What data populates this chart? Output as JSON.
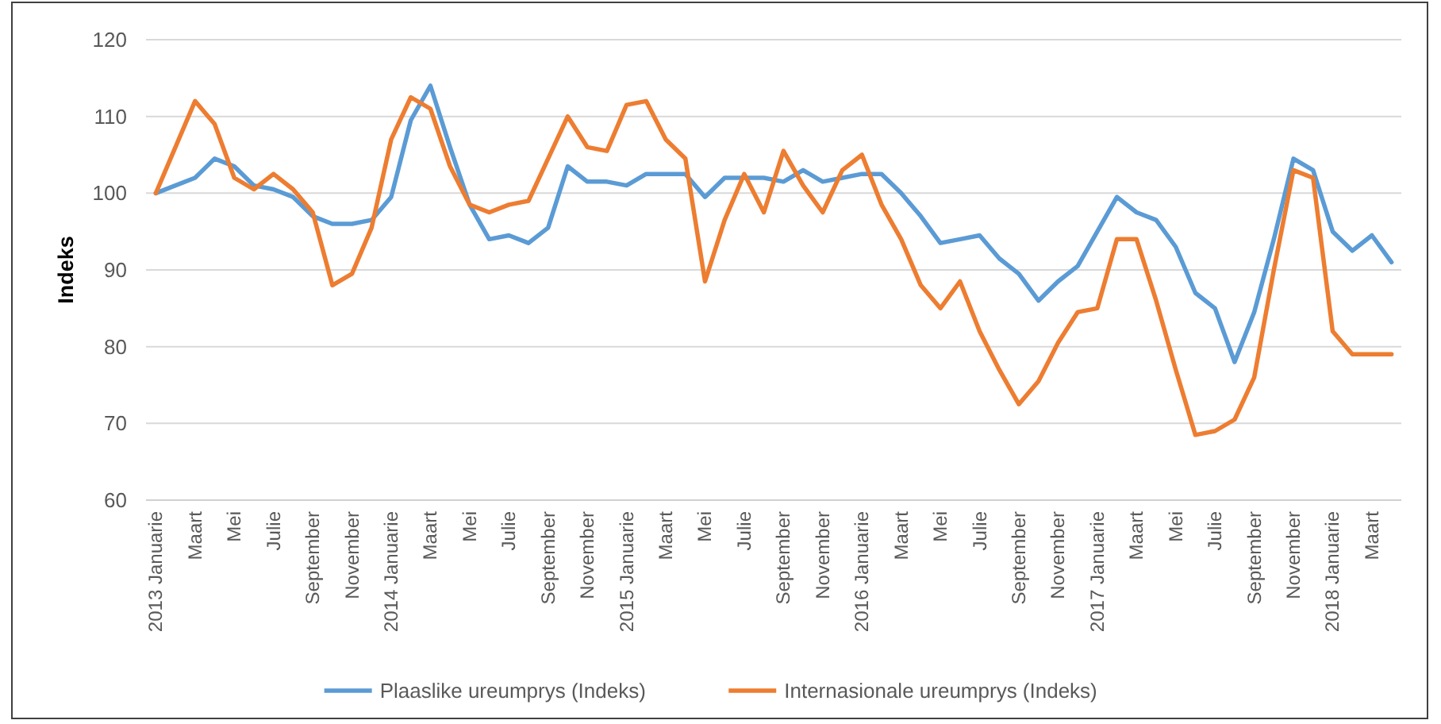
{
  "chart_data": {
    "type": "line",
    "ylabel": "Indeks",
    "categories": [
      "2013 Januarie",
      null,
      "Maart",
      null,
      "Mei",
      null,
      "Julie",
      null,
      "September",
      null,
      "November",
      null,
      "2014 Januarie",
      null,
      "Maart",
      null,
      "Mei",
      null,
      "Julie",
      null,
      "September",
      null,
      "November",
      null,
      "2015 Januarie",
      null,
      "Maart",
      null,
      "Mei",
      null,
      "Julie",
      null,
      "September",
      null,
      "November",
      null,
      "2016 Januarie",
      null,
      "Maart",
      null,
      "Mei",
      null,
      "Julie",
      null,
      "September",
      null,
      "November",
      null,
      "2017 Januarie",
      null,
      "Maart",
      null,
      "Mei",
      null,
      "Julie",
      null,
      "September",
      null,
      "November",
      null,
      "2018 Januarie",
      null,
      "Maart",
      null
    ],
    "series": [
      {
        "name": "Plaaslike ureumprys (Indeks)",
        "color": "#5b9bd5",
        "values": [
          100,
          101,
          102,
          104.5,
          103.5,
          101,
          100.5,
          99.5,
          97,
          96,
          96,
          96.5,
          99.5,
          109.5,
          114,
          106,
          98.5,
          94,
          94.5,
          93.5,
          95.5,
          103.5,
          101.5,
          101.5,
          101,
          102.5,
          102.5,
          102.5,
          99.5,
          102,
          102,
          102,
          101.5,
          103,
          101.5,
          102,
          102.5,
          102.5,
          100,
          97,
          93.5,
          94,
          94.5,
          91.5,
          89.5,
          86,
          88.5,
          90.5,
          95,
          99.5,
          97.5,
          96.5,
          93,
          87,
          85,
          78,
          84.5,
          94,
          104.5,
          103,
          95,
          92.5,
          94.5,
          91
        ]
      },
      {
        "name": "Internasionale ureumprys (Indeks)",
        "color": "#ed7d31",
        "values": [
          100,
          106,
          112,
          109,
          102,
          100.5,
          102.5,
          100.5,
          97.5,
          88,
          89.5,
          95.5,
          107,
          112.5,
          111,
          103.5,
          98.5,
          97.5,
          98.5,
          99,
          104.5,
          110,
          106,
          105.5,
          111.5,
          112,
          107,
          104.5,
          88.5,
          96.5,
          102.5,
          97.5,
          105.5,
          101,
          97.5,
          103,
          105,
          98.5,
          94,
          88,
          85,
          88.5,
          82,
          77,
          72.5,
          75.5,
          80.5,
          84.5,
          85,
          94,
          94,
          86,
          77,
          68.5,
          69,
          70.5,
          76,
          90,
          103,
          102,
          82,
          79,
          79,
          79
        ]
      }
    ],
    "ylim": [
      60,
      120
    ],
    "yticks": [
      60,
      70,
      80,
      90,
      100,
      110,
      120
    ],
    "grid": "y",
    "legend": "bottom",
    "line_style": "solid"
  }
}
